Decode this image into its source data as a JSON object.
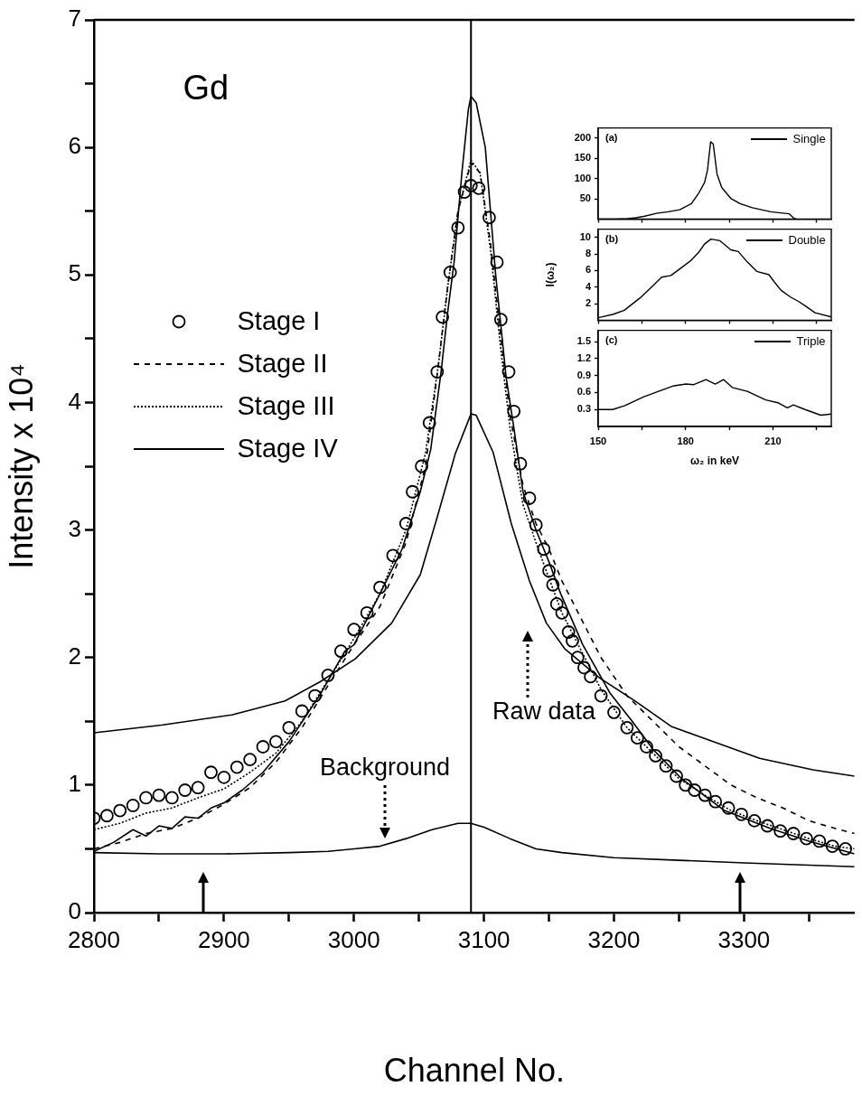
{
  "chart_data": [
    {
      "type": "line",
      "xlabel": "Channel No.",
      "ylabel": "Intensity x 10⁴",
      "xlim": [
        2800,
        3385
      ],
      "xticks": [
        2800,
        {
          "value": 2850,
          "label": null
        },
        2900,
        {
          "value": 2950,
          "label": null
        },
        3000,
        {
          "value": 3050,
          "label": null
        },
        3100,
        {
          "value": 3150,
          "label": null
        },
        3200,
        {
          "value": 3250,
          "label": null
        },
        3300,
        {
          "value": 3350,
          "label": null
        }
      ],
      "ylim": [
        0,
        7
      ],
      "yticks": [
        0,
        {
          "value": 0.5,
          "label": null
        },
        1,
        {
          "value": 1.5,
          "label": null
        },
        2,
        {
          "value": 2.5,
          "label": null
        },
        3,
        {
          "value": 3.5,
          "label": null
        },
        4,
        {
          "value": 4.5,
          "label": null
        },
        5,
        {
          "value": 5.5,
          "label": null
        },
        6,
        {
          "value": 6.5,
          "label": null
        },
        7
      ],
      "legend": "top left",
      "ref_lines": [
        {
          "axis": "x",
          "value": 3090
        }
      ],
      "annotations": [
        "Gd",
        "Background",
        "Raw data"
      ],
      "series": [
        {
          "name": "Stage I",
          "type": "scatter",
          "marker": "circle",
          "color": "#000000",
          "x": [
            2800,
            2810,
            2820,
            2830,
            2840,
            2850,
            2860,
            2870,
            2880,
            2890,
            2900,
            2910,
            2920,
            2930,
            2940,
            2950,
            2960,
            2970,
            2980,
            2990,
            3000,
            3010,
            3020,
            3030,
            3040,
            3045,
            3052,
            3058,
            3064,
            3068,
            3074,
            3080,
            3085,
            3090,
            3096,
            3104,
            3110,
            3113,
            3119,
            3123,
            3128,
            3135,
            3140,
            3146,
            3150,
            3153,
            3156,
            3160,
            3165,
            3168,
            3172,
            3177,
            3182,
            3190,
            3200,
            3210,
            3218,
            3225,
            3232,
            3240,
            3248,
            3255,
            3262,
            3270,
            3278,
            3288,
            3298,
            3308,
            3318,
            3328,
            3338,
            3348,
            3358,
            3368,
            3378
          ],
          "values": [
            0.74,
            0.76,
            0.8,
            0.84,
            0.9,
            0.92,
            0.9,
            0.96,
            0.98,
            1.1,
            1.06,
            1.14,
            1.2,
            1.3,
            1.34,
            1.45,
            1.58,
            1.7,
            1.86,
            2.05,
            2.22,
            2.35,
            2.55,
            2.8,
            3.05,
            3.3,
            3.5,
            3.84,
            4.24,
            4.67,
            5.02,
            5.37,
            5.65,
            5.7,
            5.68,
            5.45,
            5.1,
            4.65,
            4.24,
            3.93,
            3.52,
            3.25,
            3.04,
            2.85,
            2.68,
            2.57,
            2.42,
            2.35,
            2.2,
            2.13,
            2.0,
            1.92,
            1.85,
            1.7,
            1.57,
            1.45,
            1.37,
            1.3,
            1.23,
            1.15,
            1.07,
            1.0,
            0.96,
            0.92,
            0.87,
            0.82,
            0.77,
            0.72,
            0.68,
            0.64,
            0.62,
            0.58,
            0.56,
            0.52,
            0.5
          ]
        },
        {
          "name": "Stage II",
          "line_style": "dashed",
          "color": "#000000",
          "x": [
            2800,
            2820,
            2840,
            2860,
            2880,
            2900,
            2920,
            2940,
            2960,
            2980,
            3000,
            3020,
            3040,
            3055,
            3065,
            3072,
            3080,
            3090,
            3097,
            3105,
            3112,
            3120,
            3130,
            3140,
            3150,
            3160,
            3175,
            3190,
            3210,
            3230,
            3250,
            3270,
            3290,
            3310,
            3330,
            3350,
            3370,
            3385
          ],
          "values": [
            0.5,
            0.55,
            0.62,
            0.66,
            0.74,
            0.85,
            0.98,
            1.18,
            1.45,
            1.78,
            2.1,
            2.4,
            2.9,
            3.5,
            4.3,
            4.9,
            5.5,
            5.88,
            5.8,
            5.25,
            4.6,
            3.9,
            3.35,
            3.05,
            2.85,
            2.6,
            2.3,
            2.0,
            1.7,
            1.5,
            1.3,
            1.15,
            1.0,
            0.9,
            0.82,
            0.72,
            0.66,
            0.62
          ]
        },
        {
          "name": "Stage III",
          "line_style": "dotted",
          "color": "#000000",
          "x": [
            2800,
            2820,
            2840,
            2860,
            2880,
            2900,
            2920,
            2940,
            2960,
            2980,
            3000,
            3020,
            3040,
            3055,
            3065,
            3072,
            3080,
            3090,
            3097,
            3105,
            3112,
            3120,
            3130,
            3140,
            3150,
            3160,
            3175,
            3190,
            3210,
            3230,
            3250,
            3270,
            3290,
            3310,
            3330,
            3350,
            3370,
            3385
          ],
          "values": [
            0.65,
            0.7,
            0.78,
            0.82,
            0.9,
            0.97,
            1.1,
            1.25,
            1.5,
            1.82,
            2.15,
            2.5,
            3.0,
            3.6,
            4.3,
            4.9,
            5.5,
            5.9,
            5.8,
            5.2,
            4.5,
            3.8,
            3.2,
            2.9,
            2.62,
            2.35,
            2.05,
            1.75,
            1.45,
            1.25,
            1.05,
            0.92,
            0.8,
            0.72,
            0.65,
            0.58,
            0.52,
            0.5
          ]
        },
        {
          "name": "Stage IV",
          "line_style": "solid",
          "color": "#000000",
          "x": [
            2800,
            2815,
            2830,
            2840,
            2850,
            2860,
            2870,
            2880,
            2890,
            2900,
            2914,
            2930,
            2950,
            2974,
            2993,
            3000,
            3020,
            3037,
            3051,
            3059,
            3067,
            3072,
            3077,
            3083,
            3088,
            3090,
            3094,
            3101,
            3109,
            3117,
            3123,
            3130,
            3135,
            3140,
            3150,
            3159,
            3176,
            3197,
            3214,
            3230,
            3252,
            3285,
            3320,
            3350,
            3385
          ],
          "values": [
            0.48,
            0.55,
            0.65,
            0.6,
            0.68,
            0.66,
            0.75,
            0.74,
            0.82,
            0.86,
            0.96,
            1.1,
            1.34,
            1.71,
            2.05,
            2.1,
            2.5,
            2.85,
            3.3,
            3.63,
            4.24,
            4.7,
            5.1,
            5.8,
            6.3,
            6.4,
            6.35,
            6.0,
            5.0,
            4.2,
            3.8,
            3.3,
            3.15,
            3.0,
            2.75,
            2.5,
            2.1,
            1.72,
            1.5,
            1.28,
            1.05,
            0.8,
            0.66,
            0.56,
            0.46
          ]
        },
        {
          "line_style": "solid",
          "color": "#000000",
          "x": [
            2800,
            2852,
            2906,
            2947,
            2974,
            3001,
            3029,
            3051,
            3064,
            3078,
            3090,
            3094,
            3107,
            3121,
            3135,
            3148,
            3162,
            3189,
            3216,
            3244,
            3271,
            3312,
            3353,
            3385
          ],
          "values": [
            1.41,
            1.47,
            1.55,
            1.66,
            1.81,
            1.99,
            2.27,
            2.65,
            3.1,
            3.6,
            3.91,
            3.9,
            3.61,
            3.05,
            2.6,
            2.27,
            2.07,
            1.84,
            1.66,
            1.46,
            1.36,
            1.21,
            1.12,
            1.07
          ]
        },
        {
          "line_style": "solid",
          "color": "#000000",
          "x": [
            2800,
            2850,
            2900,
            2950,
            2980,
            3000,
            3020,
            3040,
            3060,
            3080,
            3090,
            3100,
            3120,
            3140,
            3160,
            3200,
            3250,
            3300,
            3385
          ],
          "values": [
            0.47,
            0.46,
            0.46,
            0.47,
            0.48,
            0.5,
            0.52,
            0.58,
            0.65,
            0.7,
            0.7,
            0.67,
            0.58,
            0.5,
            0.47,
            0.43,
            0.41,
            0.39,
            0.36
          ]
        }
      ]
    },
    {
      "type": "line",
      "annotations": [
        "(a)"
      ],
      "legend": "top right",
      "tick_labels": "y",
      "xlim": [
        150,
        230
      ],
      "xticks": [
        150,
        {
          "value": 165,
          "label": null
        },
        180,
        {
          "value": 195,
          "label": null
        },
        210,
        {
          "value": 225,
          "label": null
        }
      ],
      "ylim": [
        0,
        225
      ],
      "yticks": [
        50,
        100,
        150,
        200
      ],
      "series": [
        {
          "name": "Single",
          "color": "#000000",
          "x": [
            150,
            156,
            160,
            163,
            166,
            170,
            174,
            178,
            182,
            184.6,
            186.5,
            187.5,
            188.6,
            189.5,
            190.8,
            192.4,
            195.5,
            198.7,
            202.9,
            209.2,
            215.5,
            217,
            218
          ],
          "values": [
            0,
            0,
            1,
            3,
            7,
            14,
            18,
            23,
            38,
            65,
            90,
            120,
            191,
            185,
            111,
            78,
            51,
            38,
            28,
            18,
            13,
            3,
            0
          ]
        }
      ]
    },
    {
      "type": "line",
      "annotations": [
        "(b)"
      ],
      "legend": "top right",
      "tick_labels": "y",
      "ylabel": "I(ω₂)",
      "xlim": [
        150,
        230
      ],
      "xticks": [
        150,
        {
          "value": 165,
          "label": null
        },
        180,
        {
          "value": 195,
          "label": null
        },
        210,
        {
          "value": 225,
          "label": null
        }
      ],
      "ylim": [
        0,
        11
      ],
      "yticks": [
        2,
        4,
        6,
        8,
        10
      ],
      "series": [
        {
          "name": "Double",
          "color": "#000000",
          "x": [
            150,
            155,
            159,
            164.4,
            168,
            171.8,
            175,
            178,
            181.8,
            184.5,
            186.5,
            188.7,
            191.8,
            193.5,
            195.5,
            198.1,
            201,
            204.4,
            208.6,
            210.5,
            212.8,
            216,
            219.1,
            222,
            224.4,
            230
          ],
          "values": [
            0.3,
            0.7,
            1.2,
            2.7,
            3.9,
            5.2,
            5.4,
            6.2,
            7.2,
            8.2,
            9.2,
            9.8,
            9.6,
            9.1,
            8.5,
            8.3,
            7.1,
            5.9,
            5.5,
            4.6,
            3.6,
            2.8,
            2.2,
            1.5,
            0.9,
            0.4
          ]
        }
      ]
    },
    {
      "type": "line",
      "annotations": [
        "(c)"
      ],
      "legend": "top right",
      "xlabel": "ω₂ in keV",
      "xlim": [
        150,
        230
      ],
      "xticks": [
        150,
        {
          "value": 165,
          "label": null
        },
        180,
        {
          "value": 195,
          "label": null
        },
        210,
        {
          "value": 225,
          "label": null
        }
      ],
      "ylim": [
        0,
        1.7
      ],
      "yticks": [
        0.3,
        0.6,
        0.9,
        1.2,
        1.5
      ],
      "series": [
        {
          "name": "Triple",
          "color": "#000000",
          "x": [
            150,
            155,
            159.2,
            165.5,
            170.7,
            176,
            180.2,
            182.8,
            187,
            190.2,
            193,
            196,
            201.2,
            207.5,
            211.7,
            214.9,
            217,
            221,
            226.4,
            230
          ],
          "values": [
            0.3,
            0.3,
            0.37,
            0.52,
            0.62,
            0.72,
            0.75,
            0.74,
            0.83,
            0.75,
            0.83,
            0.69,
            0.62,
            0.47,
            0.42,
            0.33,
            0.38,
            0.3,
            0.2,
            0.22
          ]
        }
      ]
    }
  ]
}
